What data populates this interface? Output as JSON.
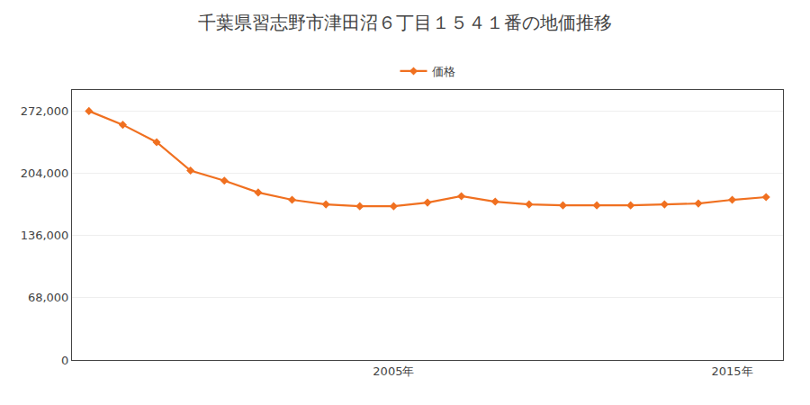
{
  "chart_data": {
    "type": "line",
    "title": "千葉県習志野市津田沼６丁目１５４１番の地価推移",
    "x": [
      1996,
      1997,
      1998,
      1999,
      2000,
      2001,
      2002,
      2003,
      2004,
      2005,
      2006,
      2007,
      2008,
      2009,
      2010,
      2011,
      2012,
      2013,
      2014,
      2015,
      2016
    ],
    "series": [
      {
        "name": "価格",
        "color": "#f07020",
        "values": [
          272000,
          257000,
          238000,
          207000,
          196000,
          183000,
          175000,
          170000,
          168000,
          168000,
          172000,
          179000,
          173000,
          170000,
          169000,
          169000,
          169000,
          170000,
          171000,
          175000,
          178000
        ]
      }
    ],
    "xlim": [
      1995.5,
      2016.5
    ],
    "xticks": [
      {
        "value": 2005,
        "label": "2005年"
      },
      {
        "value": 2015,
        "label": "2015年"
      }
    ],
    "ylim": [
      0,
      295000
    ],
    "yticks": [
      0,
      {
        "value": 68000,
        "label": "68,000"
      },
      {
        "value": 136000,
        "label": "136,000"
      },
      {
        "value": 204000,
        "label": "204,000"
      },
      {
        "value": 272000,
        "label": "272,000"
      }
    ],
    "grid": "y",
    "legend": "top",
    "marker": "diamond"
  }
}
